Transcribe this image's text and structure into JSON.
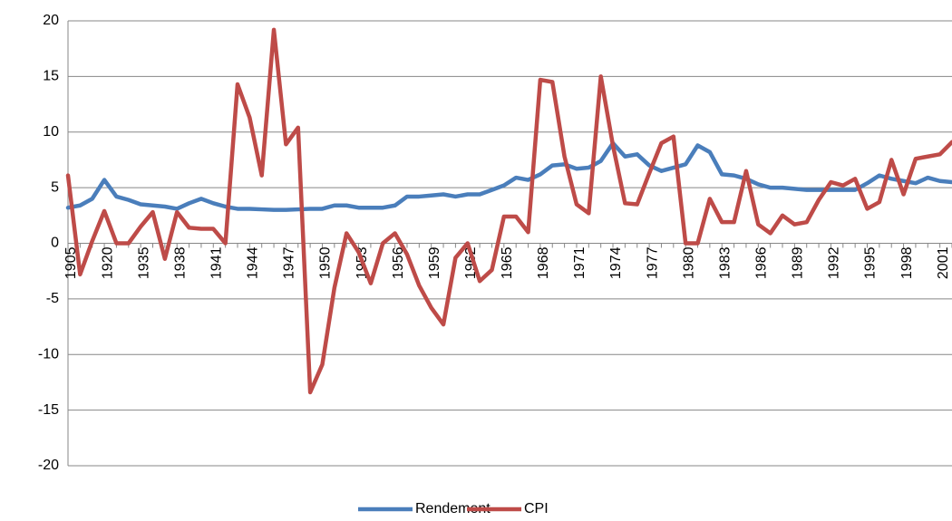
{
  "chart_data": {
    "type": "line",
    "categories": [
      "1905",
      null,
      null,
      "1920",
      null,
      null,
      "1935",
      null,
      null,
      "1938",
      null,
      null,
      "1941",
      null,
      null,
      "1944",
      null,
      null,
      "1947",
      null,
      null,
      "1950",
      null,
      null,
      "1953",
      null,
      null,
      "1956",
      null,
      null,
      "1959",
      null,
      null,
      "1962",
      null,
      null,
      "1965",
      null,
      null,
      "1968",
      null,
      null,
      "1971",
      null,
      null,
      "1974",
      null,
      null,
      "1977",
      null,
      null,
      "1980",
      null,
      null,
      "1983",
      null,
      null,
      "1986",
      null,
      null,
      "1989",
      null,
      null,
      "1992",
      null,
      null,
      "1995",
      null,
      null,
      "1998",
      null,
      null,
      "2001",
      null
    ],
    "series": [
      {
        "name": "Rendement",
        "color": "#4a7ebb",
        "values": [
          3.2,
          3.4,
          4.0,
          5.7,
          4.2,
          3.9,
          3.5,
          3.4,
          3.3,
          3.1,
          3.6,
          4.0,
          3.6,
          3.3,
          3.1,
          3.1,
          3.05,
          3.0,
          3.0,
          3.05,
          3.1,
          3.1,
          3.4,
          3.4,
          3.2,
          3.2,
          3.2,
          3.4,
          4.2,
          4.2,
          4.3,
          4.4,
          4.2,
          4.4,
          4.4,
          4.8,
          5.2,
          5.9,
          5.7,
          6.2,
          7.0,
          7.1,
          6.7,
          6.8,
          7.4,
          9.0,
          7.8,
          8.0,
          7.0,
          6.5,
          6.8,
          7.1,
          8.8,
          8.2,
          6.2,
          6.1,
          5.8,
          5.3,
          5.0,
          5.0,
          4.9,
          4.8,
          4.8,
          4.8,
          4.8,
          4.8,
          5.4,
          6.1,
          5.8,
          5.6,
          5.4,
          5.9,
          5.6,
          5.5
        ]
      },
      {
        "name": "CPI",
        "color": "#be4b48",
        "values": [
          6.1,
          -2.8,
          0.2,
          2.9,
          0,
          0,
          1.5,
          2.8,
          -1.4,
          2.8,
          1.4,
          1.3,
          1.3,
          0,
          14.3,
          11.3,
          6.1,
          19.2,
          8.9,
          10.4,
          -13.4,
          -10.9,
          -4,
          0.9,
          -0.8,
          -3.6,
          0,
          0.9,
          -1,
          -3.8,
          -5.8,
          -7.3,
          -1.3,
          0,
          -3.4,
          -2.4,
          2.4,
          2.4,
          1.0,
          14.7,
          14.5,
          7.8,
          3.5,
          2.7,
          15.0,
          8.8,
          3.6,
          3.5,
          6.3,
          9.0,
          9.6,
          0,
          0,
          4.0,
          1.9,
          1.9,
          6.5,
          1.7,
          0.9,
          2.5,
          1.7,
          1.9,
          3.9,
          5.5,
          5.2,
          5.8,
          3.1,
          3.7,
          7.5,
          4.4,
          7.6,
          7.8,
          8.0,
          9.1
        ]
      }
    ],
    "ylim": [
      -20,
      20
    ],
    "yticks": [
      -20,
      -15,
      -10,
      -5,
      0,
      5,
      10,
      15,
      20
    ],
    "grid": true,
    "legend": "bottom"
  }
}
